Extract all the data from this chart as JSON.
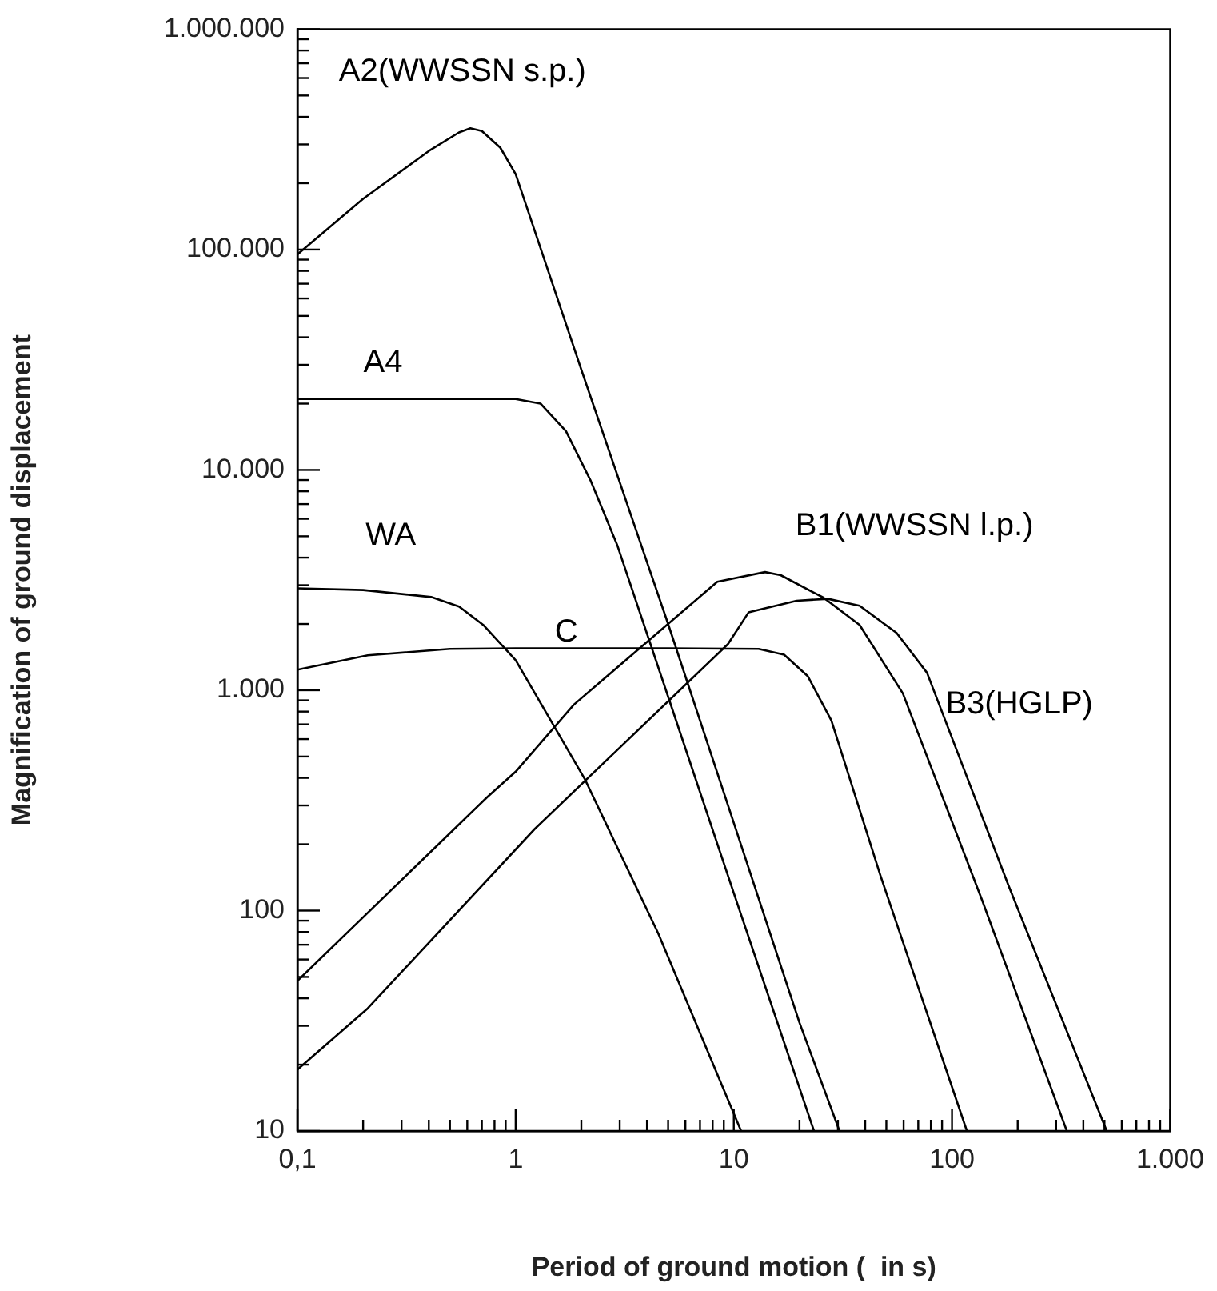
{
  "chart_data": {
    "type": "line",
    "xlabel": "Period of ground motion (  in s)",
    "ylabel": "Magnification of ground displacement",
    "log": "xy",
    "grid": false,
    "legend": false,
    "marker": "none",
    "line_style": "solid",
    "xlim": [
      0.1,
      1000
    ],
    "ylim": [
      10,
      1000000
    ],
    "xticks": [
      {
        "value": 0.1,
        "label": "0,1"
      },
      {
        "value": 0.2,
        "label": null
      },
      {
        "value": 0.3,
        "label": null
      },
      {
        "value": 0.4,
        "label": null
      },
      {
        "value": 0.5,
        "label": null
      },
      {
        "value": 0.6,
        "label": null
      },
      {
        "value": 0.7,
        "label": null
      },
      {
        "value": 0.8,
        "label": null
      },
      {
        "value": 0.9,
        "label": null
      },
      1,
      {
        "value": 2,
        "label": null
      },
      {
        "value": 3,
        "label": null
      },
      {
        "value": 4,
        "label": null
      },
      {
        "value": 5,
        "label": null
      },
      {
        "value": 6,
        "label": null
      },
      {
        "value": 7,
        "label": null
      },
      {
        "value": 8,
        "label": null
      },
      {
        "value": 9,
        "label": null
      },
      10,
      {
        "value": 20,
        "label": null
      },
      {
        "value": 30,
        "label": null
      },
      {
        "value": 40,
        "label": null
      },
      {
        "value": 50,
        "label": null
      },
      {
        "value": 60,
        "label": null
      },
      {
        "value": 70,
        "label": null
      },
      {
        "value": 80,
        "label": null
      },
      {
        "value": 90,
        "label": null
      },
      100,
      {
        "value": 200,
        "label": null
      },
      {
        "value": 300,
        "label": null
      },
      {
        "value": 400,
        "label": null
      },
      {
        "value": 500,
        "label": null
      },
      {
        "value": 600,
        "label": null
      },
      {
        "value": 700,
        "label": null
      },
      {
        "value": 800,
        "label": null
      },
      {
        "value": 900,
        "label": null
      },
      {
        "value": 1000,
        "label": "1.000"
      }
    ],
    "yticks": [
      10,
      {
        "value": 20,
        "label": null
      },
      {
        "value": 30,
        "label": null
      },
      {
        "value": 40,
        "label": null
      },
      {
        "value": 50,
        "label": null
      },
      {
        "value": 60,
        "label": null
      },
      {
        "value": 70,
        "label": null
      },
      {
        "value": 80,
        "label": null
      },
      {
        "value": 90,
        "label": null
      },
      100,
      {
        "value": 200,
        "label": null
      },
      {
        "value": 300,
        "label": null
      },
      {
        "value": 400,
        "label": null
      },
      {
        "value": 500,
        "label": null
      },
      {
        "value": 600,
        "label": null
      },
      {
        "value": 700,
        "label": null
      },
      {
        "value": 800,
        "label": null
      },
      {
        "value": 900,
        "label": null
      },
      {
        "value": 1000,
        "label": "1.000"
      },
      {
        "value": 2000,
        "label": null
      },
      {
        "value": 3000,
        "label": null
      },
      {
        "value": 4000,
        "label": null
      },
      {
        "value": 5000,
        "label": null
      },
      {
        "value": 6000,
        "label": null
      },
      {
        "value": 7000,
        "label": null
      },
      {
        "value": 8000,
        "label": null
      },
      {
        "value": 9000,
        "label": null
      },
      {
        "value": 10000,
        "label": "10.000"
      },
      {
        "value": 20000,
        "label": null
      },
      {
        "value": 30000,
        "label": null
      },
      {
        "value": 40000,
        "label": null
      },
      {
        "value": 50000,
        "label": null
      },
      {
        "value": 60000,
        "label": null
      },
      {
        "value": 70000,
        "label": null
      },
      {
        "value": 80000,
        "label": null
      },
      {
        "value": 90000,
        "label": null
      },
      {
        "value": 100000,
        "label": "100.000"
      },
      {
        "value": 200000,
        "label": null
      },
      {
        "value": 300000,
        "label": null
      },
      {
        "value": 400000,
        "label": null
      },
      {
        "value": 500000,
        "label": null
      },
      {
        "value": 600000,
        "label": null
      },
      {
        "value": 700000,
        "label": null
      },
      {
        "value": 800000,
        "label": null
      },
      {
        "value": 900000,
        "label": null
      },
      {
        "value": 1000000,
        "label": "1.000.000"
      }
    ],
    "series": [
      {
        "name": "A2(WWSSN s.p.)",
        "color": "#000000",
        "x": [
          0.1,
          0.2,
          0.4,
          0.55,
          0.62,
          0.7,
          0.85,
          1,
          2,
          5,
          10,
          20,
          30.5
        ],
        "values": [
          95000,
          170000,
          280000,
          340000,
          355000,
          345000,
          290000,
          220000,
          28500,
          2000,
          250,
          31,
          10
        ]
      },
      {
        "name": "A4",
        "color": "#000000",
        "x": [
          0.1,
          0.5,
          1,
          1.3,
          1.7,
          2.2,
          2.92,
          5,
          10,
          23.3
        ],
        "values": [
          21000,
          21000,
          21000,
          20000,
          15000,
          9000,
          4570,
          935,
          120,
          10
        ]
      },
      {
        "name": "WA",
        "color": "#000000",
        "x": [
          0.1,
          0.2,
          0.41,
          0.55,
          0.71,
          1,
          2.08,
          4.5,
          10.8
        ],
        "values": [
          2900,
          2850,
          2650,
          2400,
          1980,
          1370,
          393,
          79,
          10
        ]
      },
      {
        "name": "C",
        "color": "#000000",
        "x": [
          0.1,
          0.21,
          0.5,
          1,
          5,
          13,
          17,
          21.8,
          28,
          47,
          117
        ],
        "values": [
          1240,
          1440,
          1540,
          1550,
          1550,
          1540,
          1450,
          1160,
          728,
          144,
          10
        ]
      },
      {
        "name": "B1(WWSSN l.p.)",
        "color": "#000000",
        "x": [
          0.1,
          0.74,
          1,
          1.85,
          4.3,
          8.4,
          13.9,
          16.4,
          25.8,
          37.7,
          59.5,
          138,
          336
        ],
        "values": [
          48,
          327,
          427,
          861,
          1760,
          3110,
          3440,
          3330,
          2630,
          1980,
          968,
          110,
          10
        ]
      },
      {
        "name": "B3(HGLP)",
        "color": "#000000",
        "x": [
          0.1,
          0.21,
          1.22,
          9.4,
          11.7,
          19.4,
          27,
          37.7,
          55.7,
          76.8,
          181,
          512
        ],
        "values": [
          19,
          36,
          234,
          1620,
          2260,
          2550,
          2600,
          2420,
          1820,
          1200,
          131,
          10
        ]
      }
    ]
  }
}
